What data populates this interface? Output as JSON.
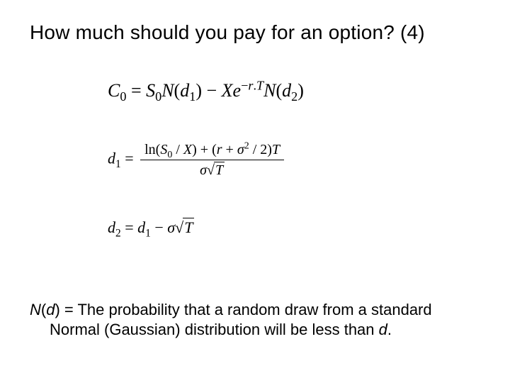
{
  "title": "How much should you pay for an option? (4)",
  "equations": {
    "c0_lhs": "C",
    "c0_sub": "0",
    "c0_eq": " = ",
    "c0_S": "S",
    "c0_S_sub": "0",
    "c0_N1": "N",
    "c0_open1": "(",
    "c0_d1": "d",
    "c0_d1_sub": "1",
    "c0_close1": ")",
    "c0_minus": " − ",
    "c0_X": "X",
    "c0_e": "e",
    "c0_exp_neg": "−",
    "c0_exp_r": "r",
    "c0_exp_dot": ".",
    "c0_exp_T": "T",
    "c0_N2": "N",
    "c0_open2": "(",
    "c0_d2": "d",
    "c0_d2_sub": "2",
    "c0_close2": ")",
    "d1_lhs": "d",
    "d1_lhs_sub": "1",
    "d1_eq": " = ",
    "d1_num_ln": "ln(",
    "d1_num_S": "S",
    "d1_num_S_sub": "0",
    "d1_num_slash": " / ",
    "d1_num_X": "X",
    "d1_num_close": ")",
    "d1_num_plus": " + ",
    "d1_num_open2": "(",
    "d1_num_r": "r",
    "d1_num_plus2": " + ",
    "d1_num_sigma": "σ",
    "d1_num_sq": "2",
    "d1_num_div2": " / 2)",
    "d1_num_T": "T",
    "d1_den_sigma": "σ",
    "d1_den_rad": "√",
    "d1_den_T": "T",
    "d2_lhs": "d",
    "d2_lhs_sub": "2",
    "d2_eq": " = ",
    "d2_d1": "d",
    "d2_d1_sub": "1",
    "d2_minus": " − ",
    "d2_sigma": "σ",
    "d2_rad": "√",
    "d2_T": "T"
  },
  "footnote": {
    "N_ital": "N",
    "open": "(",
    "d_ital": "d",
    "close": ")",
    "line1_rest": " = The probability that a random draw from a standard",
    "line2": "Normal (Gaussian) distribution will be less than ",
    "d_ital_2": "d",
    "period": "."
  },
  "style": {
    "background_color": "#ffffff",
    "text_color": "#000000",
    "title_fontfamily": "Arial",
    "title_fontsize": 28,
    "equation_fontfamily": "Times New Roman",
    "equation_fontsize_main": 26,
    "equation_fontsize_sub": 22,
    "footnote_fontfamily": "Arial",
    "footnote_fontsize": 22
  }
}
